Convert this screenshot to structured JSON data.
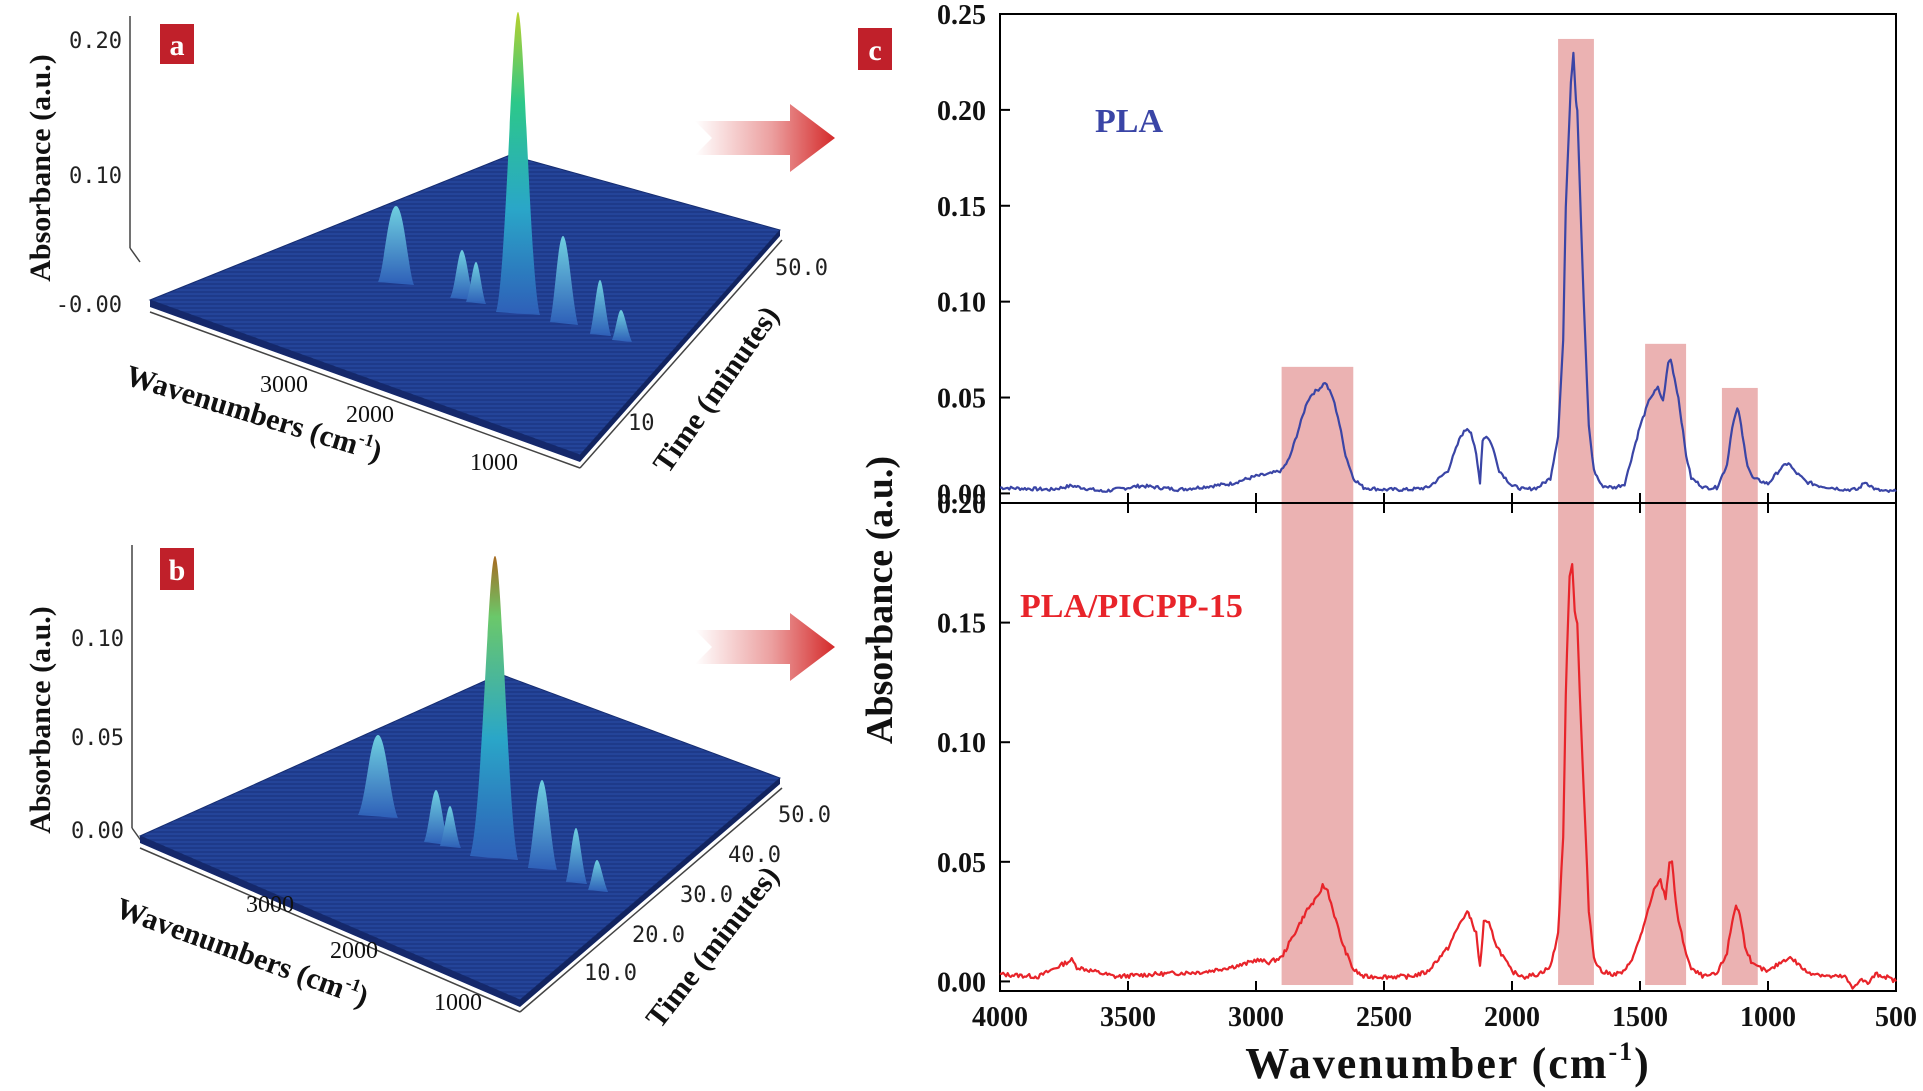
{
  "figure": {
    "panel_a_letter": "a",
    "panel_b_letter": "b",
    "panel_c_letter": "c",
    "badge_color": "#c0202a",
    "arrow_color": "#d42a2a"
  },
  "panel_a": {
    "z_axis_label": "Absorbance (a.u.)",
    "z_ticks": [
      "0.20",
      "0.10",
      "-0.00"
    ],
    "x_axis_label": "Wavenumbers (cm",
    "x_axis_sup": "-1",
    "x_axis_close": ")",
    "x_ticks": [
      "3000",
      "2000",
      "1000"
    ],
    "y_axis_label": "Time (minutes)",
    "y_ticks": [
      "50.0",
      "10"
    ],
    "surface_color": "#1b3a8c"
  },
  "panel_b": {
    "z_axis_label": "Absorbance (a.u.)",
    "z_ticks": [
      "0.10",
      "0.05",
      "0.00"
    ],
    "x_axis_label": "Wavenumbers (cm",
    "x_axis_sup": "-1",
    "x_axis_close": ")",
    "x_ticks": [
      "3000",
      "2000",
      "1000"
    ],
    "y_axis_label": "Time (minutes)",
    "y_ticks": [
      "50.0",
      "40.0",
      "30.0",
      "20.0",
      "10.0"
    ],
    "surface_color": "#1b3a8c"
  },
  "panel_c": {
    "y_axis_label": "Absorbance (a.u.)",
    "x_axis_label": "Wavenumber (cm",
    "x_axis_sup": "-1",
    "x_axis_close": ")",
    "x_ticks": [
      "4000",
      "3500",
      "3000",
      "2500",
      "2000",
      "1500",
      "1000",
      "500"
    ],
    "highlight_color": "#e8a4a4"
  },
  "chart_data": [
    {
      "type": "line",
      "panel": "c-top",
      "title": "PLA",
      "series_color": "#3a45a6",
      "xlabel": "Wavenumber (cm-1)",
      "ylabel": "Absorbance (a.u.)",
      "xlim": [
        4000,
        500
      ],
      "ylim": [
        -0.005,
        0.25
      ],
      "y_ticks": [
        "0.00",
        "0.05",
        "0.10",
        "0.15",
        "0.20",
        "0.25"
      ],
      "x": [
        4000,
        3800,
        3720,
        3600,
        3450,
        3300,
        3100,
        3000,
        2950,
        2900,
        2870,
        2830,
        2800,
        2780,
        2750,
        2730,
        2700,
        2680,
        2650,
        2620,
        2580,
        2500,
        2400,
        2330,
        2300,
        2250,
        2200,
        2175,
        2160,
        2140,
        2125,
        2115,
        2100,
        2080,
        2050,
        2000,
        1950,
        1900,
        1850,
        1820,
        1800,
        1790,
        1770,
        1760,
        1750,
        1745,
        1735,
        1720,
        1700,
        1680,
        1650,
        1600,
        1560,
        1540,
        1500,
        1460,
        1430,
        1410,
        1390,
        1380,
        1365,
        1350,
        1320,
        1300,
        1250,
        1200,
        1160,
        1140,
        1120,
        1110,
        1100,
        1080,
        1060,
        1000,
        950,
        920,
        900,
        850,
        800,
        750,
        700,
        650,
        620,
        580,
        540,
        500
      ],
      "y": [
        0.003,
        0.002,
        0.004,
        0.001,
        0.004,
        0.002,
        0.005,
        0.009,
        0.01,
        0.012,
        0.018,
        0.035,
        0.048,
        0.052,
        0.055,
        0.058,
        0.05,
        0.04,
        0.02,
        0.008,
        0.003,
        0.002,
        0.002,
        0.003,
        0.006,
        0.012,
        0.03,
        0.034,
        0.032,
        0.02,
        0.006,
        0.028,
        0.03,
        0.026,
        0.012,
        0.004,
        0.002,
        0.003,
        0.008,
        0.03,
        0.08,
        0.15,
        0.215,
        0.23,
        0.205,
        0.2,
        0.16,
        0.1,
        0.035,
        0.012,
        0.004,
        0.003,
        0.005,
        0.015,
        0.035,
        0.05,
        0.055,
        0.048,
        0.068,
        0.07,
        0.06,
        0.05,
        0.02,
        0.008,
        0.003,
        0.003,
        0.015,
        0.035,
        0.044,
        0.04,
        0.03,
        0.015,
        0.008,
        0.005,
        0.013,
        0.016,
        0.012,
        0.006,
        0.004,
        0.003,
        0.002,
        0.002,
        0.006,
        0.002,
        0.001,
        0.001
      ]
    },
    {
      "type": "line",
      "panel": "c-bottom",
      "title": "PLA/PICPP-15",
      "series_color": "#e8242a",
      "xlabel": "Wavenumber (cm-1)",
      "ylabel": "Absorbance (a.u.)",
      "xlim": [
        4000,
        500
      ],
      "ylim": [
        -0.004,
        0.2
      ],
      "y_ticks": [
        "0.00",
        "0.05",
        "0.10",
        "0.15",
        "0.20"
      ],
      "x": [
        4000,
        3850,
        3740,
        3720,
        3700,
        3550,
        3400,
        3200,
        3050,
        3000,
        2950,
        2900,
        2860,
        2800,
        2760,
        2740,
        2720,
        2700,
        2660,
        2620,
        2580,
        2500,
        2400,
        2330,
        2300,
        2250,
        2200,
        2175,
        2160,
        2140,
        2125,
        2110,
        2090,
        2060,
        2000,
        1950,
        1900,
        1850,
        1820,
        1800,
        1790,
        1775,
        1765,
        1755,
        1745,
        1735,
        1720,
        1700,
        1680,
        1650,
        1600,
        1560,
        1520,
        1480,
        1440,
        1420,
        1400,
        1385,
        1375,
        1365,
        1350,
        1320,
        1300,
        1250,
        1200,
        1160,
        1140,
        1125,
        1110,
        1090,
        1060,
        1000,
        950,
        920,
        900,
        850,
        800,
        760,
        700,
        670,
        640,
        610,
        580,
        540,
        500
      ],
      "y": [
        0.003,
        0.002,
        0.008,
        0.009,
        0.006,
        0.002,
        0.003,
        0.004,
        0.007,
        0.009,
        0.008,
        0.01,
        0.018,
        0.03,
        0.035,
        0.04,
        0.038,
        0.03,
        0.015,
        0.005,
        0.002,
        0.002,
        0.002,
        0.004,
        0.008,
        0.014,
        0.025,
        0.029,
        0.026,
        0.02,
        0.006,
        0.025,
        0.024,
        0.015,
        0.004,
        0.002,
        0.003,
        0.006,
        0.02,
        0.06,
        0.12,
        0.17,
        0.175,
        0.155,
        0.15,
        0.12,
        0.08,
        0.03,
        0.01,
        0.004,
        0.003,
        0.004,
        0.012,
        0.025,
        0.04,
        0.042,
        0.035,
        0.05,
        0.05,
        0.038,
        0.025,
        0.012,
        0.005,
        0.002,
        0.003,
        0.012,
        0.025,
        0.032,
        0.028,
        0.015,
        0.007,
        0.004,
        0.008,
        0.01,
        0.009,
        0.004,
        0.003,
        0.002,
        0.002,
        -0.003,
        0.001,
        -0.001,
        0.003,
        0.002,
        0.0
      ]
    }
  ],
  "highlight_bands": [
    {
      "from": 2900,
      "to": 2620
    },
    {
      "from": 1820,
      "to": 1680
    },
    {
      "from": 1480,
      "to": 1320
    },
    {
      "from": 1180,
      "to": 1040
    }
  ]
}
